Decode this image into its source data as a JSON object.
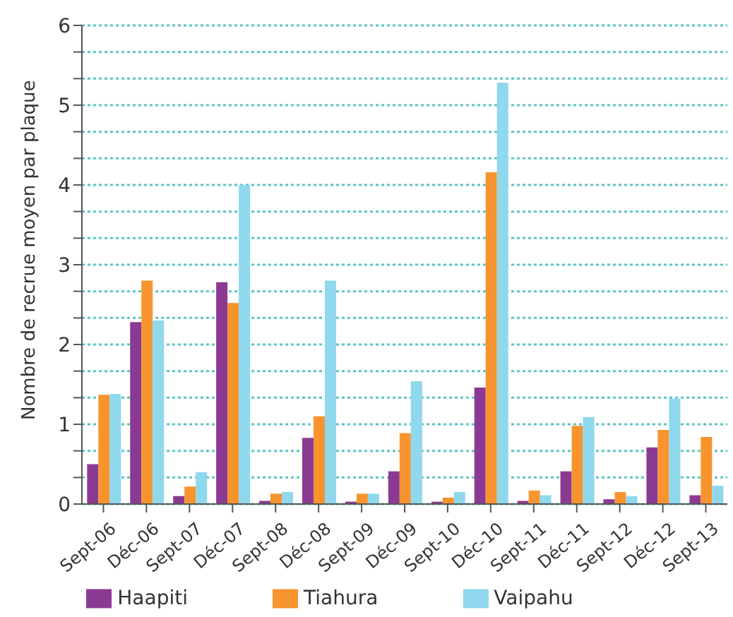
{
  "chart_data": {
    "type": "bar",
    "ylabel": "Nombre de recrue moyen par plaque",
    "categories": [
      "Sept-06",
      "Déc-06",
      "Sept-07",
      "Déc-07",
      "Sept-08",
      "Déc-08",
      "Sept-09",
      "Déc-09",
      "Sept-10",
      "Déc-10",
      "Sept-11",
      "Déc-11",
      "Sept-12",
      "Déc-12",
      "Sept-13"
    ],
    "series": [
      {
        "name": "Haapiti",
        "color": "#8b3a93",
        "values": [
          0.5,
          2.28,
          0.1,
          2.78,
          0.04,
          0.83,
          0.03,
          0.41,
          0.03,
          1.46,
          0.04,
          0.41,
          0.06,
          0.71,
          0.11
        ]
      },
      {
        "name": "Tiahura",
        "color": "#f7942e",
        "values": [
          1.37,
          2.8,
          0.22,
          2.52,
          0.13,
          1.1,
          0.13,
          0.89,
          0.08,
          4.16,
          0.17,
          0.98,
          0.15,
          0.93,
          0.84
        ]
      },
      {
        "name": "Vaipahu",
        "color": "#8fd8ee",
        "values": [
          1.38,
          2.3,
          0.4,
          4.0,
          0.15,
          2.8,
          0.13,
          1.54,
          0.15,
          5.28,
          0.11,
          1.09,
          0.1,
          1.32,
          0.23
        ]
      }
    ],
    "ylim": [
      0,
      6
    ],
    "yticks": [
      0,
      {
        "value": 0.333,
        "label": null
      },
      {
        "value": 0.667,
        "label": null
      },
      1,
      {
        "value": 1.333,
        "label": null
      },
      {
        "value": 1.667,
        "label": null
      },
      2,
      {
        "value": 2.333,
        "label": null
      },
      {
        "value": 2.667,
        "label": null
      },
      3,
      {
        "value": 3.333,
        "label": null
      },
      {
        "value": 3.667,
        "label": null
      },
      4,
      {
        "value": 4.333,
        "label": null
      },
      {
        "value": 4.667,
        "label": null
      },
      5,
      {
        "value": 5.333,
        "label": null
      },
      {
        "value": 5.667,
        "label": null
      },
      6
    ],
    "grid": "y",
    "legend": "bottom"
  }
}
